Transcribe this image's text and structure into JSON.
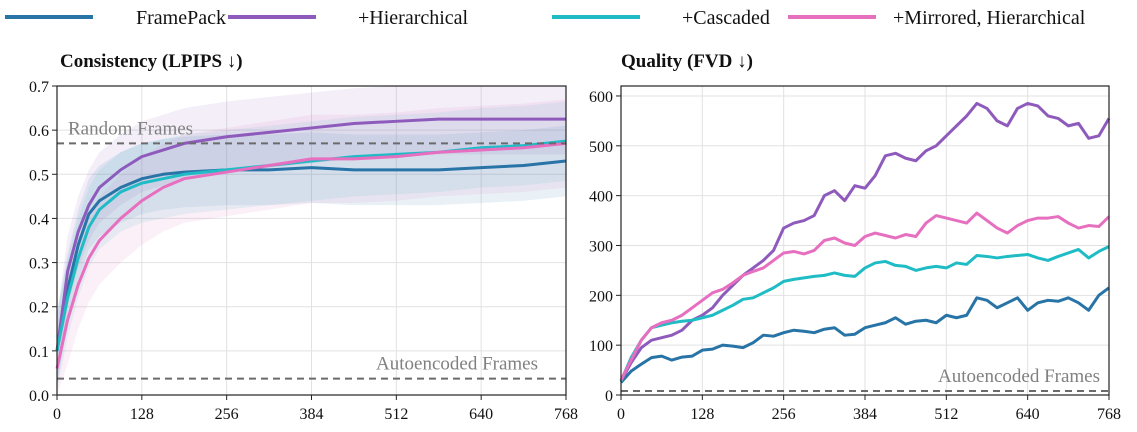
{
  "legend": {
    "placement": "top",
    "entries": [
      {
        "label": "FramePack",
        "color": "#2874a6"
      },
      {
        "label": "+Hierarchical",
        "color": "#8e5bbd"
      },
      {
        "label": "+Cascaded",
        "color": "#1fbcc6"
      },
      {
        "label": "+Mirrored, Hierarchical",
        "color": "#e66fbf"
      }
    ]
  },
  "chart_data": [
    {
      "type": "line",
      "title": "Consistency (LPIPS ↓)",
      "xlim": [
        0,
        768
      ],
      "ylim": [
        0,
        0.7
      ],
      "xticks": [
        "0",
        "128",
        "256",
        "384",
        "512",
        "640",
        "768"
      ],
      "yticks": [
        "0.0",
        "0.1",
        "0.2",
        "0.3",
        "0.4",
        "0.5",
        "0.6",
        "0.7"
      ],
      "grid": true,
      "x": [
        0,
        16,
        32,
        48,
        64,
        96,
        128,
        160,
        192,
        256,
        320,
        384,
        448,
        512,
        576,
        640,
        704,
        768
      ],
      "series": [
        {
          "name": "FramePack",
          "color": "#2874a6",
          "band": 0.08,
          "values": [
            0.1,
            0.24,
            0.34,
            0.41,
            0.44,
            0.47,
            0.49,
            0.5,
            0.505,
            0.51,
            0.51,
            0.515,
            0.51,
            0.51,
            0.51,
            0.515,
            0.52,
            0.53
          ]
        },
        {
          "name": "+Hierarchical",
          "color": "#8e5bbd",
          "band": 0.08,
          "values": [
            0.1,
            0.28,
            0.37,
            0.43,
            0.47,
            0.51,
            0.54,
            0.555,
            0.57,
            0.585,
            0.595,
            0.605,
            0.615,
            0.62,
            0.625,
            0.625,
            0.625,
            0.625
          ]
        },
        {
          "name": "+Cascaded",
          "color": "#1fbcc6",
          "band": 0.09,
          "values": [
            0.1,
            0.22,
            0.31,
            0.38,
            0.42,
            0.46,
            0.48,
            0.49,
            0.5,
            0.51,
            0.52,
            0.53,
            0.54,
            0.545,
            0.55,
            0.56,
            0.565,
            0.575
          ]
        },
        {
          "name": "+Mirrored, Hierarchical",
          "color": "#e66fbf",
          "band": 0.1,
          "values": [
            0.06,
            0.17,
            0.25,
            0.31,
            0.35,
            0.4,
            0.44,
            0.47,
            0.49,
            0.505,
            0.52,
            0.535,
            0.535,
            0.54,
            0.55,
            0.555,
            0.56,
            0.57
          ]
        }
      ],
      "reference_lines": [
        {
          "label": "Random Frames",
          "y": 0.57
        },
        {
          "label": "Autoencoded Frames",
          "y": 0.037
        }
      ]
    },
    {
      "type": "line",
      "title": "Quality (FVD ↓)",
      "xlim": [
        0,
        768
      ],
      "ylim": [
        0,
        620
      ],
      "xticks": [
        "0",
        "128",
        "256",
        "384",
        "512",
        "640",
        "768"
      ],
      "yticks": [
        "0",
        "100",
        "200",
        "300",
        "400",
        "500",
        "600"
      ],
      "grid": true,
      "x": [
        0,
        16,
        32,
        48,
        64,
        80,
        96,
        112,
        128,
        144,
        160,
        176,
        192,
        208,
        224,
        240,
        256,
        272,
        288,
        304,
        320,
        336,
        352,
        368,
        384,
        400,
        416,
        432,
        448,
        464,
        480,
        496,
        512,
        528,
        544,
        560,
        576,
        592,
        608,
        624,
        640,
        656,
        672,
        688,
        704,
        720,
        736,
        752,
        768
      ],
      "series": [
        {
          "name": "FramePack",
          "color": "#2874a6",
          "values": [
            25,
            48,
            62,
            75,
            78,
            70,
            76,
            78,
            90,
            92,
            100,
            98,
            95,
            105,
            120,
            118,
            125,
            130,
            128,
            125,
            132,
            135,
            120,
            122,
            135,
            140,
            145,
            155,
            142,
            148,
            150,
            145,
            160,
            155,
            160,
            195,
            190,
            175,
            185,
            195,
            170,
            185,
            190,
            188,
            195,
            185,
            170,
            200,
            215
          ]
        },
        {
          "name": "+Hierarchical",
          "color": "#8e5bbd",
          "values": [
            28,
            65,
            95,
            110,
            115,
            120,
            130,
            150,
            160,
            175,
            200,
            220,
            240,
            255,
            270,
            290,
            335,
            345,
            350,
            360,
            400,
            410,
            390,
            420,
            415,
            440,
            480,
            485,
            475,
            470,
            490,
            500,
            520,
            540,
            560,
            585,
            575,
            550,
            540,
            575,
            585,
            580,
            560,
            555,
            540,
            545,
            515,
            520,
            555
          ]
        },
        {
          "name": "+Cascaded",
          "color": "#1fbcc6",
          "values": [
            28,
            75,
            110,
            135,
            140,
            145,
            148,
            150,
            155,
            160,
            170,
            180,
            192,
            195,
            205,
            215,
            228,
            232,
            235,
            238,
            240,
            245,
            240,
            238,
            255,
            265,
            268,
            260,
            258,
            250,
            255,
            258,
            255,
            265,
            262,
            280,
            278,
            275,
            278,
            280,
            282,
            275,
            270,
            278,
            285,
            292,
            275,
            288,
            298
          ]
        },
        {
          "name": "+Mirrored, Hierarchical",
          "color": "#e66fbf",
          "values": [
            30,
            70,
            110,
            135,
            145,
            150,
            160,
            175,
            190,
            205,
            212,
            225,
            240,
            248,
            255,
            270,
            285,
            288,
            283,
            290,
            310,
            315,
            305,
            300,
            318,
            325,
            320,
            315,
            322,
            318,
            345,
            360,
            355,
            350,
            345,
            365,
            350,
            335,
            325,
            340,
            350,
            355,
            355,
            358,
            345,
            335,
            340,
            338,
            358
          ]
        }
      ],
      "reference_lines": [
        {
          "label": "Autoencoded Frames",
          "y": 8
        }
      ]
    }
  ]
}
